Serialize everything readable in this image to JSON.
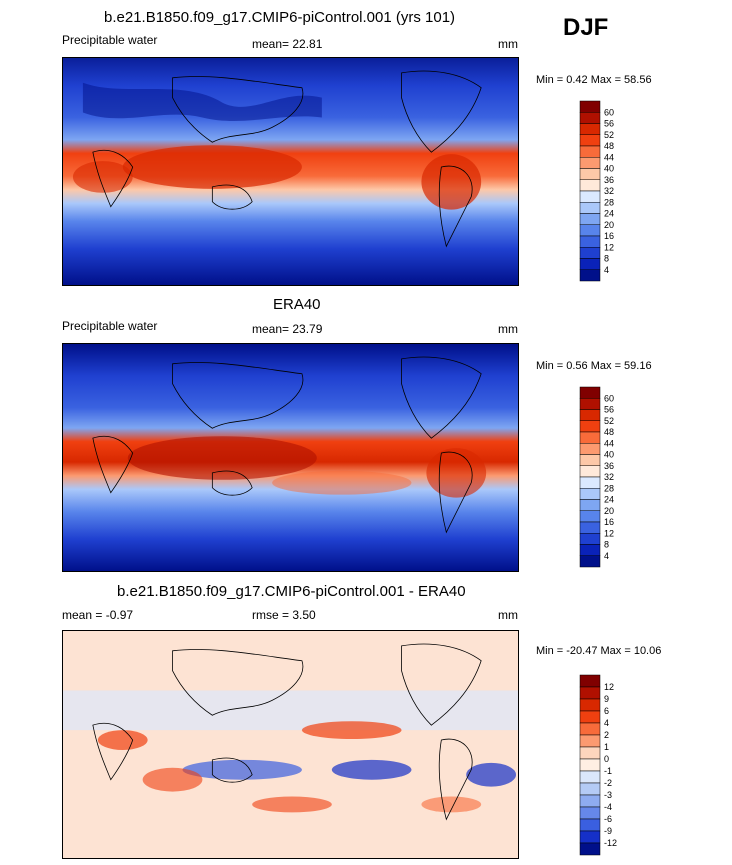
{
  "season": "DJF",
  "panels": [
    {
      "title": "b.e21.B1850.f09_g17.CMIP6-piControl.001 (yrs 101)",
      "left_label": "Precipitable water",
      "mean_label": "mean=  22.81",
      "units": "mm",
      "minmax": "Min =   0.42 Max =  58.56",
      "colorbar_labels": [
        "60",
        "56",
        "52",
        "48",
        "44",
        "40",
        "36",
        "32",
        "28",
        "24",
        "20",
        "16",
        "12",
        "8",
        "4"
      ],
      "colors": [
        "#800000",
        "#b01000",
        "#d82800",
        "#f04010",
        "#f86b3a",
        "#fc9a70",
        "#fdc8a8",
        "#ffe9da",
        "#dbe9ff",
        "#aac8fa",
        "#7ea6f2",
        "#5884eb",
        "#3a62e0",
        "#1f40d0",
        "#0a22b8",
        "#00108a"
      ]
    },
    {
      "title": "ERA40",
      "left_label": "Precipitable water",
      "mean_label": "mean=  23.79",
      "units": "mm",
      "minmax": "Min =   0.56 Max =  59.16",
      "colorbar_labels": [
        "60",
        "56",
        "52",
        "48",
        "44",
        "40",
        "36",
        "32",
        "28",
        "24",
        "20",
        "16",
        "12",
        "8",
        "4"
      ],
      "colors": [
        "#800000",
        "#b01000",
        "#d82800",
        "#f04010",
        "#f86b3a",
        "#fc9a70",
        "#fdc8a8",
        "#ffe9da",
        "#dbe9ff",
        "#aac8fa",
        "#7ea6f2",
        "#5884eb",
        "#3a62e0",
        "#1f40d0",
        "#0a22b8",
        "#00108a"
      ]
    },
    {
      "title": "b.e21.B1850.f09_g17.CMIP6-piControl.001 - ERA40",
      "left_label": "mean =  -0.97",
      "mean_label": "rmse =   3.50",
      "units": "mm",
      "minmax": "Min = -20.47 Max =  10.06",
      "colorbar_labels": [
        "12",
        "9",
        "6",
        "4",
        "2",
        "1",
        "0",
        "-1",
        "-2",
        "-3",
        "-4",
        "-6",
        "-9",
        "-12"
      ],
      "colors": [
        "#800000",
        "#b01000",
        "#d82800",
        "#f04010",
        "#f86b3a",
        "#fc9a70",
        "#fdd5bd",
        "#ffefe3",
        "#dbe7fb",
        "#b4cbf5",
        "#8eacf0",
        "#6688ea",
        "#3a5fe0",
        "#1530c8",
        "#00108a"
      ]
    }
  ]
}
